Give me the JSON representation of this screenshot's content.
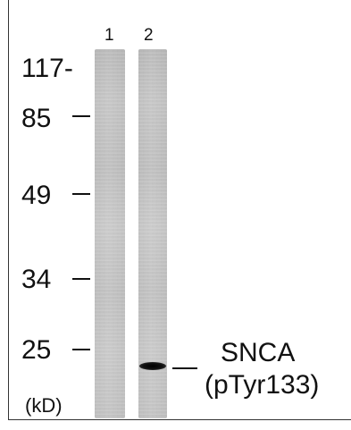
{
  "lanes": [
    {
      "label": "1"
    },
    {
      "label": "2"
    }
  ],
  "markers": [
    {
      "label": "117-"
    },
    {
      "label": "85"
    },
    {
      "label": "49"
    },
    {
      "label": "34"
    },
    {
      "label": "25"
    }
  ],
  "unit_label": "(kD)",
  "target": {
    "name": "SNCA",
    "site": "(pTyr133)"
  },
  "colors": {
    "border": "#333333",
    "text": "#111111",
    "lane": "#c5c5c5",
    "band": "#000000"
  }
}
